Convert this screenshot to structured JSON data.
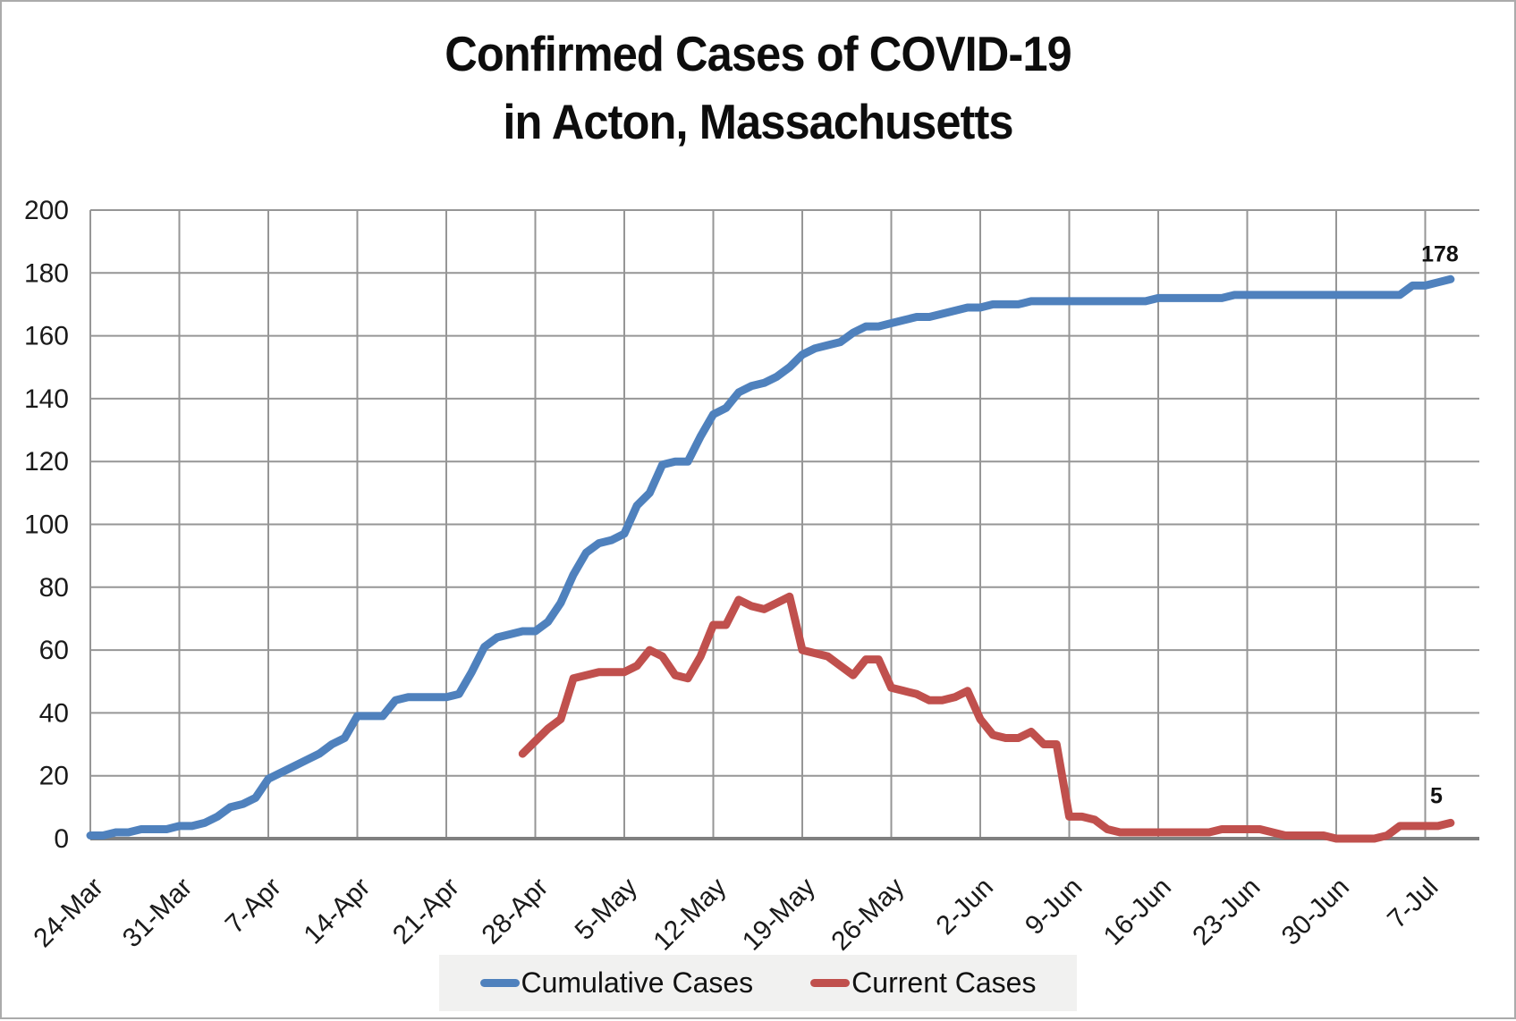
{
  "title": {
    "line1": "Confirmed Cases of COVID-19",
    "line2": "in Acton, Massachusetts"
  },
  "legend": [
    {
      "label": "Cumulative Cases",
      "color": "#4F81BD"
    },
    {
      "label": "Current Cases",
      "color": "#C0504D"
    }
  ],
  "end_labels": {
    "cumulative": "178",
    "current": "5"
  },
  "colors": {
    "cumulative_line": "#4F81BD",
    "current_line": "#C0504D",
    "gridline": "#969696",
    "axis_line": "#7f7f7f",
    "tick_text": "#1a1a1a",
    "legend_bg": "#f1f1f0"
  },
  "chart_data": {
    "type": "line",
    "title": "Confirmed Cases of COVID-19 in Acton, Massachusetts",
    "xlabel": "",
    "ylabel": "",
    "ylim": [
      0,
      200
    ],
    "y_ticks": [
      0,
      20,
      40,
      60,
      80,
      100,
      120,
      140,
      160,
      180,
      200
    ],
    "x_tick_labels": [
      "24-Mar",
      "31-Mar",
      "7-Apr",
      "14-Apr",
      "21-Apr",
      "28-Apr",
      "5-May",
      "12-May",
      "19-May",
      "26-May",
      "2-Jun",
      "9-Jun",
      "16-Jun",
      "23-Jun",
      "30-Jun",
      "7-Jul"
    ],
    "days_per_tick": 7,
    "grid": "both",
    "legend_position": "bottom",
    "series": [
      {
        "name": "Cumulative Cases",
        "color": "#4F81BD",
        "start_day_index": 0,
        "start_date": "24-Mar",
        "end_value_label": "178",
        "values": [
          1,
          1,
          2,
          2,
          3,
          3,
          3,
          4,
          4,
          5,
          7,
          10,
          11,
          13,
          19,
          21,
          23,
          25,
          27,
          30,
          32,
          39,
          39,
          39,
          44,
          45,
          45,
          45,
          45,
          46,
          53,
          61,
          64,
          65,
          66,
          66,
          69,
          75,
          84,
          91,
          94,
          95,
          97,
          106,
          110,
          119,
          120,
          120,
          128,
          135,
          137,
          142,
          144,
          145,
          147,
          150,
          154,
          156,
          157,
          158,
          161,
          163,
          163,
          164,
          165,
          166,
          166,
          167,
          168,
          169,
          169,
          170,
          170,
          170,
          171,
          171,
          171,
          171,
          171,
          171,
          171,
          171,
          171,
          171,
          172,
          172,
          172,
          172,
          172,
          172,
          173,
          173,
          173,
          173,
          173,
          173,
          173,
          173,
          173,
          173,
          173,
          173,
          173,
          173,
          176,
          176,
          177,
          178
        ]
      },
      {
        "name": "Current Cases",
        "color": "#C0504D",
        "start_day_index": 34,
        "start_date": "27-Apr",
        "end_value_label": "5",
        "values": [
          27,
          31,
          35,
          38,
          51,
          52,
          53,
          53,
          53,
          55,
          60,
          58,
          52,
          51,
          58,
          68,
          68,
          76,
          74,
          73,
          75,
          77,
          60,
          59,
          58,
          55,
          52,
          57,
          57,
          48,
          47,
          46,
          44,
          44,
          45,
          47,
          38,
          33,
          32,
          32,
          34,
          30,
          30,
          7,
          7,
          6,
          3,
          2,
          2,
          2,
          2,
          2,
          2,
          2,
          2,
          3,
          3,
          3,
          3,
          2,
          1,
          1,
          1,
          1,
          0,
          0,
          0,
          0,
          1,
          4,
          4,
          4,
          4,
          5
        ]
      }
    ]
  }
}
